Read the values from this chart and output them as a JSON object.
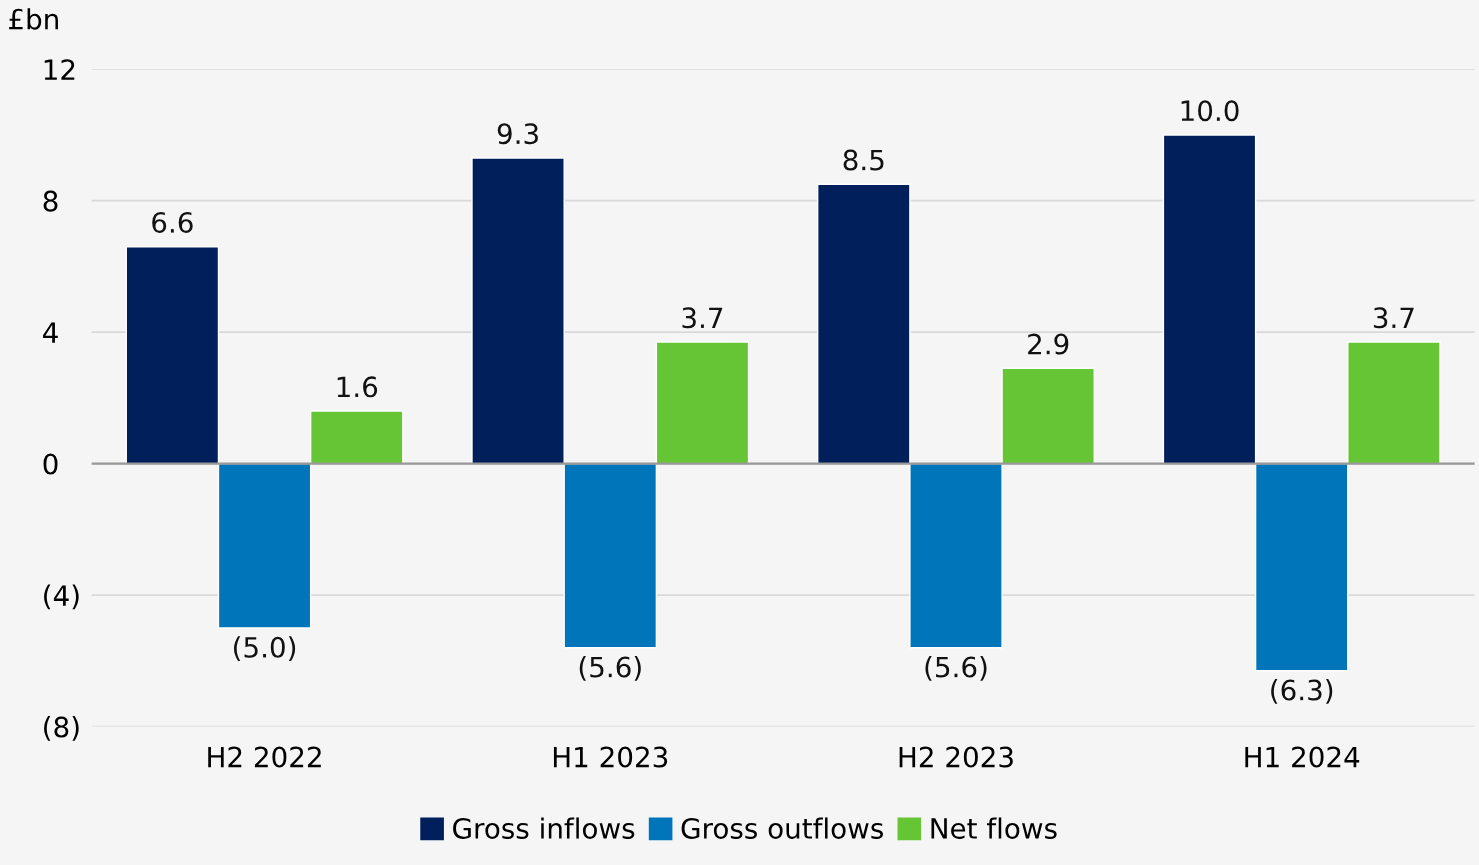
{
  "chart_data": {
    "type": "bar",
    "ylabel": "£bn",
    "categories": [
      "H2 2022",
      "H1 2023",
      "H2 2023",
      "H1 2024"
    ],
    "series": [
      {
        "name": "Gross inflows",
        "color": "#001f5b",
        "values": [
          6.6,
          9.3,
          8.5,
          10.0
        ],
        "value_labels": [
          "6.6",
          "9.3",
          "8.5",
          "10.0"
        ]
      },
      {
        "name": "Gross outflows",
        "color": "#0075b9",
        "values": [
          -5.0,
          -5.6,
          -5.6,
          -6.3
        ],
        "value_labels": [
          "(5.0)",
          "(5.6)",
          "(5.6)",
          "(6.3)"
        ]
      },
      {
        "name": "Net flows",
        "color": "#66c534",
        "values": [
          1.6,
          3.7,
          2.9,
          3.7
        ],
        "value_labels": [
          "1.6",
          "3.7",
          "2.9",
          "3.7"
        ]
      }
    ],
    "ylim": [
      -8,
      12
    ],
    "yticks": [
      {
        "value": -8,
        "label": "(8)"
      },
      {
        "value": -4,
        "label": "(4)"
      },
      0,
      4,
      8,
      12
    ],
    "grid": "y",
    "legend": "bottom"
  }
}
